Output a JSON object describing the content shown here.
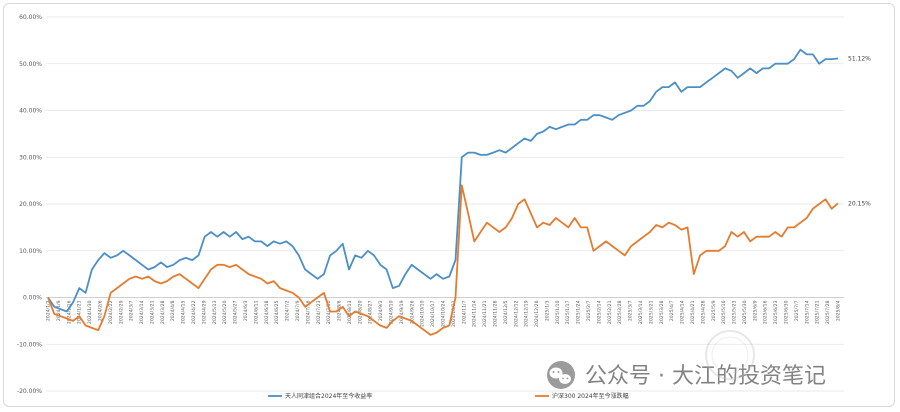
{
  "chart_data": {
    "type": "line",
    "title": "",
    "xlabel": "",
    "ylabel": "",
    "ylim": [
      -0.2,
      0.6
    ],
    "y_ticks": [
      "60.00%",
      "50.00%",
      "40.00%",
      "30.00%",
      "20.00%",
      "10.00%",
      "0.00%",
      "-10.00%",
      "-20.00%"
    ],
    "y_tick_values": [
      0.6,
      0.5,
      0.4,
      0.3,
      0.2,
      0.1,
      0.0,
      -0.1,
      -0.2
    ],
    "grid": true,
    "legend_position": "bottom",
    "x_tick_labels": [
      "2024/1/2",
      "2024/1/9",
      "2024/1/16",
      "2024/1/23",
      "2024/1/30",
      "2024/2/6",
      "2024/2/22",
      "2024/2/29",
      "2024/3/7",
      "2024/3/14",
      "2024/3/21",
      "2024/3/28",
      "2024/4/8",
      "2024/4/15",
      "2024/4/22",
      "2024/4/29",
      "2024/5/13",
      "2024/5/20",
      "2024/5/27",
      "2024/6/3",
      "2024/6/11",
      "2024/6/18",
      "2024/6/25",
      "2024/7/2",
      "2024/7/9",
      "2024/7/16",
      "2024/7/23",
      "2024/7/30",
      "2024/8/6",
      "2024/8/13",
      "2024/8/20",
      "2024/8/27",
      "2024/9/3",
      "2024/9/10",
      "2024/9/19",
      "2024/9/26",
      "2024/10/10",
      "2024/10/17",
      "2024/10/24",
      "2024/10/31",
      "2024/11/7",
      "2024/11/14",
      "2024/11/21",
      "2024/11/28",
      "2024/12/5",
      "2024/12/12",
      "2024/12/19",
      "2024/12/26",
      "2025/1/3",
      "2025/1/10",
      "2025/1/17",
      "2025/1/24",
      "2025/2/7",
      "2025/2/14",
      "2025/2/21",
      "2025/2/28",
      "2025/3/7",
      "2025/3/14",
      "2025/3/21",
      "2025/3/28",
      "2025/4/7",
      "2025/4/14",
      "2025/4/21",
      "2025/4/28",
      "2025/5/9",
      "2025/5/16",
      "2025/5/23",
      "2025/5/30",
      "2025/6/9",
      "2025/6/16",
      "2025/6/23",
      "2025/6/30",
      "2025/7/7",
      "2025/7/14",
      "2025/7/21",
      "2025/7/28",
      "2025/8/4"
    ],
    "series": [
      {
        "name": "天人同津组合2024年至今收益率",
        "color": "#4a8fc7",
        "end_label": "51.12%",
        "values": [
          0.0,
          -0.02,
          -0.025,
          -0.03,
          -0.01,
          0.02,
          0.01,
          0.06,
          0.08,
          0.095,
          0.085,
          0.09,
          0.1,
          0.09,
          0.08,
          0.07,
          0.06,
          0.065,
          0.075,
          0.065,
          0.07,
          0.08,
          0.085,
          0.08,
          0.09,
          0.13,
          0.14,
          0.13,
          0.14,
          0.13,
          0.14,
          0.125,
          0.13,
          0.12,
          0.12,
          0.11,
          0.12,
          0.115,
          0.12,
          0.11,
          0.09,
          0.06,
          0.05,
          0.04,
          0.05,
          0.09,
          0.1,
          0.115,
          0.06,
          0.09,
          0.085,
          0.1,
          0.09,
          0.07,
          0.06,
          0.02,
          0.025,
          0.05,
          0.07,
          0.06,
          0.05,
          0.04,
          0.05,
          0.04,
          0.045,
          0.08,
          0.3,
          0.31,
          0.31,
          0.305,
          0.305,
          0.31,
          0.315,
          0.31,
          0.32,
          0.33,
          0.34,
          0.335,
          0.35,
          0.355,
          0.365,
          0.36,
          0.365,
          0.37,
          0.37,
          0.38,
          0.38,
          0.39,
          0.39,
          0.385,
          0.38,
          0.39,
          0.395,
          0.4,
          0.41,
          0.41,
          0.42,
          0.44,
          0.45,
          0.45,
          0.46,
          0.44,
          0.45,
          0.45,
          0.45,
          0.46,
          0.47,
          0.48,
          0.49,
          0.485,
          0.47,
          0.48,
          0.49,
          0.48,
          0.49,
          0.49,
          0.5,
          0.5,
          0.5,
          0.51,
          0.53,
          0.52,
          0.52,
          0.5,
          0.51,
          0.51,
          0.5112
        ]
      },
      {
        "name": "沪深300 2024年至今涨跌幅",
        "color": "#e57b2e",
        "end_label": "20.15%",
        "values": [
          0.0,
          -0.035,
          -0.04,
          -0.045,
          -0.05,
          -0.04,
          -0.06,
          -0.065,
          -0.07,
          -0.04,
          0.01,
          0.02,
          0.03,
          0.04,
          0.045,
          0.04,
          0.045,
          0.035,
          0.03,
          0.035,
          0.045,
          0.05,
          0.04,
          0.03,
          0.02,
          0.04,
          0.06,
          0.07,
          0.07,
          0.065,
          0.07,
          0.06,
          0.05,
          0.045,
          0.04,
          0.03,
          0.035,
          0.02,
          0.015,
          0.01,
          0.0,
          -0.02,
          -0.01,
          0.0,
          0.01,
          -0.03,
          -0.03,
          -0.02,
          -0.04,
          -0.03,
          -0.035,
          -0.04,
          -0.05,
          -0.06,
          -0.065,
          -0.05,
          -0.04,
          -0.045,
          -0.05,
          -0.06,
          -0.07,
          -0.08,
          -0.075,
          -0.065,
          -0.06,
          0.0,
          0.24,
          0.18,
          0.12,
          0.14,
          0.16,
          0.15,
          0.14,
          0.15,
          0.17,
          0.2,
          0.21,
          0.18,
          0.15,
          0.16,
          0.155,
          0.17,
          0.16,
          0.15,
          0.17,
          0.15,
          0.15,
          0.1,
          0.11,
          0.12,
          0.11,
          0.1,
          0.09,
          0.11,
          0.12,
          0.13,
          0.14,
          0.155,
          0.15,
          0.16,
          0.155,
          0.145,
          0.15,
          0.05,
          0.09,
          0.1,
          0.1,
          0.1,
          0.11,
          0.14,
          0.13,
          0.14,
          0.12,
          0.13,
          0.13,
          0.13,
          0.14,
          0.13,
          0.15,
          0.15,
          0.16,
          0.17,
          0.19,
          0.2,
          0.21,
          0.19,
          0.2015
        ]
      }
    ]
  },
  "watermark": {
    "icon": "wechat-icon",
    "text": "公众号 · 大江的投资笔记",
    "seal": "seal-icon"
  }
}
